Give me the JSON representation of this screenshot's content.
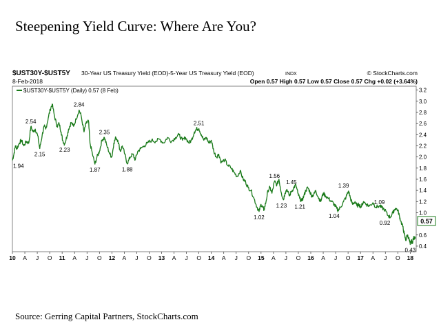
{
  "page": {
    "title": "Steepening Yield Curve:  Where Are You?",
    "source": "Source: Gerring Capital Partners, StockCharts.com"
  },
  "chart_header": {
    "symbol": "$UST30Y-$UST5Y",
    "description": "30-Year US Treasury Yield (EOD)-5-Year US Treasury Yield (EOD)",
    "exchange": "INDX",
    "brand": "© StockCharts.com",
    "date": "8-Feb-2018",
    "ohlc": "Open 0.57  High 0.57  Low 0.57  Close 0.57  Chg +0.02 (+3.64%)",
    "legend": "$UST30Y-$UST5Y (Daily) 0.57 (8 Feb)",
    "last_value": "0.57"
  },
  "chart_data": {
    "type": "line",
    "series": [
      {
        "name": "$UST30Y-$UST5Y (Daily)",
        "color": "#1a7a1a",
        "x": [
          2010.0,
          2010.03,
          2010.06,
          2010.09,
          2010.14,
          2010.18,
          2010.23,
          2010.28,
          2010.33,
          2010.37,
          2010.42,
          2010.46,
          2010.51,
          2010.55,
          2010.6,
          2010.64,
          2010.67,
          2010.72,
          2010.76,
          2010.8,
          2010.85,
          2010.9,
          2010.94,
          2010.98,
          2011.01,
          2011.05,
          2011.1,
          2011.13,
          2011.18,
          2011.23,
          2011.28,
          2011.34,
          2011.38,
          2011.44,
          2011.48,
          2011.53,
          2011.56,
          2011.61,
          2011.66,
          2011.7,
          2011.75,
          2011.8,
          2011.85,
          2011.9,
          2011.96,
          2012.0,
          2012.04,
          2012.08,
          2012.12,
          2012.17,
          2012.21,
          2012.26,
          2012.31,
          2012.37,
          2012.42,
          2012.47,
          2012.52,
          2012.58,
          2012.65,
          2012.72,
          2012.8,
          2012.88,
          2012.96,
          2013.04,
          2013.12,
          2013.2,
          2013.28,
          2013.35,
          2013.42,
          2013.48,
          2013.55,
          2013.6,
          2013.66,
          2013.7,
          2013.75,
          2013.8,
          2013.85,
          2013.9,
          2013.95,
          2014.0,
          2014.05,
          2014.1,
          2014.15,
          2014.2,
          2014.27,
          2014.33,
          2014.4,
          2014.46,
          2014.52,
          2014.58,
          2014.64,
          2014.69,
          2014.74,
          2014.8,
          2014.86,
          2014.92,
          2014.96,
          2015.0,
          2015.03,
          2015.06,
          2015.1,
          2015.14,
          2015.18,
          2015.22,
          2015.27,
          2015.32,
          2015.36,
          2015.41,
          2015.45,
          2015.48,
          2015.52,
          2015.57,
          2015.61,
          2015.66,
          2015.7,
          2015.74,
          2015.78,
          2015.82,
          2015.86,
          2015.9,
          2015.94,
          2015.98,
          2016.02,
          2016.06,
          2016.1,
          2016.15,
          2016.2,
          2016.25,
          2016.3,
          2016.36,
          2016.42,
          2016.47,
          2016.52,
          2016.55,
          2016.6,
          2016.66,
          2016.71,
          2016.76,
          2016.8,
          2016.84,
          2016.89,
          2016.93,
          2016.97,
          2017.01,
          2017.06,
          2017.12,
          2017.18,
          2017.25,
          2017.31,
          2017.38,
          2017.43,
          2017.49,
          2017.55,
          2017.6,
          2017.65,
          2017.7,
          2017.75,
          2017.78,
          2017.81,
          2017.85,
          2017.88,
          2017.91,
          2017.94,
          2017.97,
          2018.0,
          2018.02,
          2018.04,
          2018.06,
          2018.08,
          2018.1
        ],
        "y": [
          1.94,
          2.05,
          2.2,
          2.15,
          2.25,
          2.3,
          2.2,
          2.28,
          2.25,
          2.54,
          2.45,
          2.5,
          2.38,
          2.15,
          2.4,
          2.55,
          2.5,
          2.7,
          2.85,
          2.95,
          2.72,
          2.55,
          2.6,
          2.45,
          2.3,
          2.23,
          2.38,
          2.5,
          2.62,
          2.55,
          2.68,
          2.84,
          2.75,
          2.45,
          2.6,
          2.65,
          2.25,
          2.05,
          1.87,
          2.0,
          2.1,
          2.3,
          2.35,
          2.2,
          2.05,
          2.0,
          2.25,
          2.35,
          2.3,
          2.1,
          2.2,
          2.05,
          1.88,
          2.0,
          2.05,
          1.95,
          2.1,
          2.15,
          2.2,
          2.25,
          2.3,
          2.28,
          2.32,
          2.25,
          2.35,
          2.28,
          2.35,
          2.4,
          2.3,
          2.35,
          2.25,
          2.3,
          2.45,
          2.5,
          2.51,
          2.4,
          2.3,
          2.35,
          2.25,
          2.3,
          2.1,
          2.0,
          2.05,
          1.9,
          1.95,
          1.85,
          1.8,
          1.72,
          1.65,
          1.75,
          1.6,
          1.55,
          1.45,
          1.4,
          1.25,
          1.1,
          1.02,
          1.15,
          1.1,
          1.05,
          1.2,
          1.4,
          1.45,
          1.35,
          1.56,
          1.5,
          1.6,
          1.35,
          1.23,
          1.35,
          1.42,
          1.3,
          1.38,
          1.45,
          1.5,
          1.35,
          1.25,
          1.21,
          1.3,
          1.4,
          1.45,
          1.38,
          1.3,
          1.32,
          1.4,
          1.28,
          1.2,
          1.35,
          1.3,
          1.25,
          1.2,
          1.15,
          1.08,
          1.04,
          1.1,
          1.2,
          1.28,
          1.39,
          1.25,
          1.15,
          1.2,
          1.12,
          1.15,
          1.1,
          1.2,
          1.15,
          1.12,
          1.18,
          1.1,
          1.12,
          1.09,
          1.05,
          0.95,
          0.92,
          1.0,
          1.08,
          1.05,
          0.95,
          0.85,
          0.75,
          0.62,
          0.5,
          0.6,
          0.55,
          0.43,
          0.5,
          0.45,
          0.53,
          0.55,
          0.57
        ]
      }
    ],
    "x_ticks": [
      {
        "x": 2010.0,
        "label": "10",
        "major": true
      },
      {
        "x": 2010.25,
        "label": "A"
      },
      {
        "x": 2010.5,
        "label": "J"
      },
      {
        "x": 2010.75,
        "label": "O"
      },
      {
        "x": 2011.0,
        "label": "11",
        "major": true
      },
      {
        "x": 2011.25,
        "label": "A"
      },
      {
        "x": 2011.5,
        "label": "J"
      },
      {
        "x": 2011.75,
        "label": "O"
      },
      {
        "x": 2012.0,
        "label": "12",
        "major": true
      },
      {
        "x": 2012.25,
        "label": "A"
      },
      {
        "x": 2012.5,
        "label": "J"
      },
      {
        "x": 2012.75,
        "label": "O"
      },
      {
        "x": 2013.0,
        "label": "13",
        "major": true
      },
      {
        "x": 2013.25,
        "label": "A"
      },
      {
        "x": 2013.5,
        "label": "J"
      },
      {
        "x": 2013.75,
        "label": "O"
      },
      {
        "x": 2014.0,
        "label": "14",
        "major": true
      },
      {
        "x": 2014.25,
        "label": "A"
      },
      {
        "x": 2014.5,
        "label": "J"
      },
      {
        "x": 2014.75,
        "label": "O"
      },
      {
        "x": 2015.0,
        "label": "15",
        "major": true
      },
      {
        "x": 2015.25,
        "label": "A"
      },
      {
        "x": 2015.5,
        "label": "J"
      },
      {
        "x": 2015.75,
        "label": "O"
      },
      {
        "x": 2016.0,
        "label": "16",
        "major": true
      },
      {
        "x": 2016.25,
        "label": "A"
      },
      {
        "x": 2016.5,
        "label": "J"
      },
      {
        "x": 2016.75,
        "label": "O"
      },
      {
        "x": 2017.0,
        "label": "17",
        "major": true
      },
      {
        "x": 2017.25,
        "label": "A"
      },
      {
        "x": 2017.5,
        "label": "J"
      },
      {
        "x": 2017.75,
        "label": "O"
      },
      {
        "x": 2018.0,
        "label": "18",
        "major": true
      }
    ],
    "y_ticks": [
      {
        "y": 3.2,
        "label": "3.2"
      },
      {
        "y": 3.0,
        "label": "3.0"
      },
      {
        "y": 2.8,
        "label": "2.8"
      },
      {
        "y": 2.6,
        "label": "2.6"
      },
      {
        "y": 2.4,
        "label": "2.4"
      },
      {
        "y": 2.2,
        "label": "2.2"
      },
      {
        "y": 2.0,
        "label": "2.0"
      },
      {
        "y": 1.8,
        "label": "1.8"
      },
      {
        "y": 1.6,
        "label": "1.6"
      },
      {
        "y": 1.4,
        "label": "1.4"
      },
      {
        "y": 1.2,
        "label": "1.2"
      },
      {
        "y": 1.0,
        "label": "1.0"
      },
      {
        "y": 0.6,
        "label": "0.6"
      },
      {
        "y": 0.4,
        "label": "0.4"
      }
    ],
    "annotations": [
      {
        "x": 2010.0,
        "y": 1.94,
        "label": "1.94",
        "pos": "below"
      },
      {
        "x": 2010.37,
        "y": 2.54,
        "label": "2.54",
        "pos": "above"
      },
      {
        "x": 2010.55,
        "y": 2.15,
        "label": "2.15",
        "pos": "below"
      },
      {
        "x": 2011.05,
        "y": 2.23,
        "label": "2.23",
        "pos": "below"
      },
      {
        "x": 2011.34,
        "y": 2.84,
        "label": "2.84",
        "pos": "above"
      },
      {
        "x": 2011.66,
        "y": 1.87,
        "label": "1.87",
        "pos": "below"
      },
      {
        "x": 2011.85,
        "y": 2.35,
        "label": "2.35",
        "pos": "above"
      },
      {
        "x": 2012.31,
        "y": 1.88,
        "label": "1.88",
        "pos": "below"
      },
      {
        "x": 2013.75,
        "y": 2.51,
        "label": "2.51",
        "pos": "above"
      },
      {
        "x": 2014.96,
        "y": 1.02,
        "label": "1.02",
        "pos": "below"
      },
      {
        "x": 2015.27,
        "y": 1.56,
        "label": "1.56",
        "pos": "above"
      },
      {
        "x": 2015.41,
        "y": 1.23,
        "label": "1.23",
        "pos": "below"
      },
      {
        "x": 2015.61,
        "y": 1.45,
        "label": "1.45",
        "pos": "above"
      },
      {
        "x": 2015.78,
        "y": 1.21,
        "label": "1.21",
        "pos": "below"
      },
      {
        "x": 2016.47,
        "y": 1.04,
        "label": "1.04",
        "pos": "below"
      },
      {
        "x": 2016.66,
        "y": 1.39,
        "label": "1.39",
        "pos": "above"
      },
      {
        "x": 2017.38,
        "y": 1.09,
        "label": "1.09",
        "pos": "above"
      },
      {
        "x": 2017.49,
        "y": 0.92,
        "label": "0.92",
        "pos": "below"
      },
      {
        "x": 2018.0,
        "y": 0.43,
        "label": "0.43",
        "pos": "below"
      }
    ],
    "xlim": [
      2010.0,
      2018.12
    ],
    "ylim": [
      0.3,
      3.27
    ],
    "ylabel": "",
    "xlabel": "",
    "grid": false,
    "legend": "top-left"
  }
}
